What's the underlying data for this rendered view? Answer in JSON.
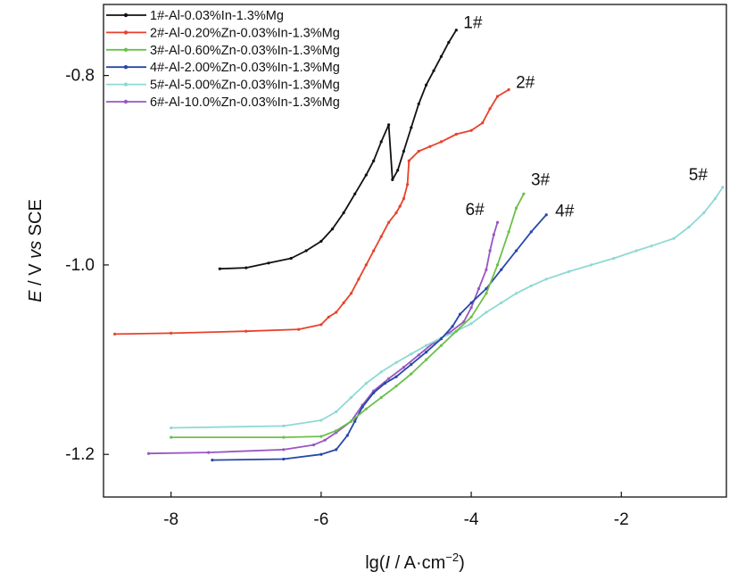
{
  "chart_data": {
    "type": "line",
    "title": "",
    "xlabel": {
      "pre": "lg(",
      "italic": "I",
      "mid": " / A·cm",
      "sup": "−2",
      "post": ")"
    },
    "ylabel": {
      "italic1": "E",
      "mid": " / V ",
      "italic2": "vs",
      "post": " SCE"
    },
    "xlim": [
      -8.9,
      -0.6
    ],
    "ylim": [
      -1.245,
      -0.725
    ],
    "xticks": [
      -8,
      -6,
      -4,
      -2
    ],
    "xtick_labels": [
      "-8",
      "-6",
      "-4",
      "-2"
    ],
    "yticks": [
      -1.2,
      -1.0,
      -0.8
    ],
    "ytick_labels": [
      "-1.2",
      "-1.0",
      "-0.8"
    ],
    "grid": false,
    "legend_position": "top-left",
    "series": [
      {
        "name": "1#-Al-0.03%In-1.3%Mg",
        "end_label": "1#",
        "color": "#111111",
        "points": [
          [
            -7.35,
            -1.004
          ],
          [
            -7.0,
            -1.003
          ],
          [
            -6.7,
            -0.998
          ],
          [
            -6.4,
            -0.993
          ],
          [
            -6.2,
            -0.985
          ],
          [
            -6.0,
            -0.975
          ],
          [
            -5.85,
            -0.962
          ],
          [
            -5.7,
            -0.945
          ],
          [
            -5.55,
            -0.925
          ],
          [
            -5.4,
            -0.905
          ],
          [
            -5.3,
            -0.89
          ],
          [
            -5.2,
            -0.87
          ],
          [
            -5.1,
            -0.852
          ],
          [
            -5.05,
            -0.91
          ],
          [
            -4.98,
            -0.9
          ],
          [
            -4.9,
            -0.88
          ],
          [
            -4.8,
            -0.855
          ],
          [
            -4.7,
            -0.83
          ],
          [
            -4.6,
            -0.81
          ],
          [
            -4.5,
            -0.795
          ],
          [
            -4.4,
            -0.78
          ],
          [
            -4.3,
            -0.765
          ],
          [
            -4.2,
            -0.752
          ]
        ]
      },
      {
        "name": "2#-Al-0.20%Zn-0.03%In-1.3%Mg",
        "end_label": "2#",
        "color": "#e8412b",
        "points": [
          [
            -8.75,
            -1.073
          ],
          [
            -8.0,
            -1.072
          ],
          [
            -7.0,
            -1.07
          ],
          [
            -6.3,
            -1.068
          ],
          [
            -6.0,
            -1.063
          ],
          [
            -5.9,
            -1.055
          ],
          [
            -5.8,
            -1.05
          ],
          [
            -5.7,
            -1.04
          ],
          [
            -5.6,
            -1.03
          ],
          [
            -5.5,
            -1.015
          ],
          [
            -5.4,
            -1.0
          ],
          [
            -5.3,
            -0.985
          ],
          [
            -5.2,
            -0.97
          ],
          [
            -5.1,
            -0.955
          ],
          [
            -5.0,
            -0.945
          ],
          [
            -4.95,
            -0.938
          ],
          [
            -4.9,
            -0.93
          ],
          [
            -4.85,
            -0.915
          ],
          [
            -4.83,
            -0.89
          ],
          [
            -4.7,
            -0.88
          ],
          [
            -4.55,
            -0.875
          ],
          [
            -4.4,
            -0.87
          ],
          [
            -4.2,
            -0.862
          ],
          [
            -4.0,
            -0.858
          ],
          [
            -3.85,
            -0.85
          ],
          [
            -3.75,
            -0.835
          ],
          [
            -3.65,
            -0.822
          ],
          [
            -3.5,
            -0.815
          ]
        ]
      },
      {
        "name": "3#-Al-0.60%Zn-0.03%In-1.3%Mg",
        "end_label": "3#",
        "color": "#6cc04a",
        "points": [
          [
            -8.0,
            -1.182
          ],
          [
            -6.5,
            -1.182
          ],
          [
            -6.0,
            -1.181
          ],
          [
            -5.8,
            -1.175
          ],
          [
            -5.6,
            -1.165
          ],
          [
            -5.4,
            -1.152
          ],
          [
            -5.2,
            -1.14
          ],
          [
            -5.0,
            -1.128
          ],
          [
            -4.8,
            -1.115
          ],
          [
            -4.6,
            -1.1
          ],
          [
            -4.4,
            -1.085
          ],
          [
            -4.2,
            -1.07
          ],
          [
            -4.0,
            -1.055
          ],
          [
            -3.8,
            -1.03
          ],
          [
            -3.65,
            -1.0
          ],
          [
            -3.5,
            -0.965
          ],
          [
            -3.4,
            -0.94
          ],
          [
            -3.3,
            -0.925
          ]
        ]
      },
      {
        "name": "4#-Al-2.00%Zn-0.03%In-1.3%Mg",
        "end_label": "4#",
        "color": "#2747a8",
        "points": [
          [
            -7.45,
            -1.206
          ],
          [
            -6.5,
            -1.205
          ],
          [
            -6.0,
            -1.2
          ],
          [
            -5.8,
            -1.195
          ],
          [
            -5.65,
            -1.18
          ],
          [
            -5.55,
            -1.165
          ],
          [
            -5.45,
            -1.15
          ],
          [
            -5.3,
            -1.135
          ],
          [
            -5.15,
            -1.125
          ],
          [
            -5.0,
            -1.118
          ],
          [
            -4.8,
            -1.105
          ],
          [
            -4.6,
            -1.092
          ],
          [
            -4.4,
            -1.078
          ],
          [
            -4.25,
            -1.065
          ],
          [
            -4.15,
            -1.052
          ],
          [
            -4.0,
            -1.04
          ],
          [
            -3.8,
            -1.025
          ],
          [
            -3.6,
            -1.005
          ],
          [
            -3.4,
            -0.985
          ],
          [
            -3.2,
            -0.965
          ],
          [
            -3.0,
            -0.947
          ]
        ]
      },
      {
        "name": "5#-Al-5.00%Zn-0.03%In-1.3%Mg",
        "end_label": "5#",
        "color": "#8fd9d4",
        "points": [
          [
            -8.0,
            -1.172
          ],
          [
            -6.5,
            -1.17
          ],
          [
            -6.0,
            -1.164
          ],
          [
            -5.8,
            -1.155
          ],
          [
            -5.6,
            -1.14
          ],
          [
            -5.4,
            -1.125
          ],
          [
            -5.2,
            -1.113
          ],
          [
            -5.0,
            -1.103
          ],
          [
            -4.8,
            -1.094
          ],
          [
            -4.6,
            -1.085
          ],
          [
            -4.4,
            -1.077
          ],
          [
            -4.2,
            -1.07
          ],
          [
            -4.0,
            -1.062
          ],
          [
            -3.8,
            -1.05
          ],
          [
            -3.6,
            -1.04
          ],
          [
            -3.4,
            -1.03
          ],
          [
            -3.2,
            -1.022
          ],
          [
            -3.0,
            -1.015
          ],
          [
            -2.7,
            -1.007
          ],
          [
            -2.4,
            -1.0
          ],
          [
            -2.1,
            -0.993
          ],
          [
            -1.8,
            -0.985
          ],
          [
            -1.6,
            -0.98
          ],
          [
            -1.3,
            -0.972
          ],
          [
            -1.1,
            -0.96
          ],
          [
            -0.9,
            -0.945
          ],
          [
            -0.75,
            -0.93
          ],
          [
            -0.65,
            -0.918
          ]
        ]
      },
      {
        "name": "6#-Al-10.0%Zn-0.03%In-1.3%Mg",
        "end_label": "6#",
        "color": "#9a55c4",
        "points": [
          [
            -8.3,
            -1.199
          ],
          [
            -7.5,
            -1.198
          ],
          [
            -6.5,
            -1.195
          ],
          [
            -6.1,
            -1.19
          ],
          [
            -5.95,
            -1.185
          ],
          [
            -5.8,
            -1.177
          ],
          [
            -5.6,
            -1.165
          ],
          [
            -5.45,
            -1.148
          ],
          [
            -5.3,
            -1.133
          ],
          [
            -5.1,
            -1.12
          ],
          [
            -4.9,
            -1.108
          ],
          [
            -4.7,
            -1.095
          ],
          [
            -4.5,
            -1.082
          ],
          [
            -4.3,
            -1.072
          ],
          [
            -4.1,
            -1.06
          ],
          [
            -4.0,
            -1.045
          ],
          [
            -3.9,
            -1.025
          ],
          [
            -3.8,
            -1.005
          ],
          [
            -3.75,
            -0.985
          ],
          [
            -3.7,
            -0.968
          ],
          [
            -3.65,
            -0.955
          ]
        ]
      }
    ]
  }
}
